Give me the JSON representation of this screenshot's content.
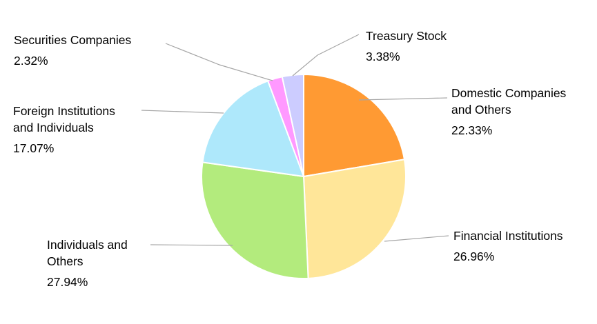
{
  "chart_data": {
    "type": "pie",
    "slices": [
      {
        "label_lines": [
          "Domestic Companies",
          "and Others"
        ],
        "pct_text": "22.33%",
        "value": 22.33,
        "color": "#FF9A33"
      },
      {
        "label_lines": [
          "Financial Institutions"
        ],
        "pct_text": "26.96%",
        "value": 26.96,
        "color": "#FFE699"
      },
      {
        "label_lines": [
          "Individuals and",
          "Others"
        ],
        "pct_text": "27.94%",
        "value": 27.94,
        "color": "#B3EB7D"
      },
      {
        "label_lines": [
          "Foreign Institutions",
          "and Individuals"
        ],
        "pct_text": "17.07%",
        "value": 17.07,
        "color": "#AEE8FB"
      },
      {
        "label_lines": [
          "Securities Companies"
        ],
        "pct_text": "2.32%",
        "value": 2.32,
        "color": "#FF99FF"
      },
      {
        "label_lines": [
          "Treasury Stock"
        ],
        "pct_text": "3.38%",
        "value": 3.38,
        "color": "#CCCCFF"
      }
    ],
    "start_direction": "12 o'clock",
    "direction": "clockwise",
    "slice_border_color": "#FFFFFF",
    "leader_line_color": "#A6A6A6"
  }
}
